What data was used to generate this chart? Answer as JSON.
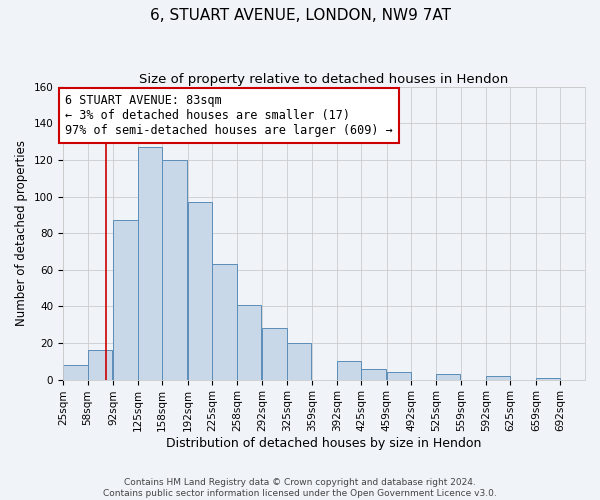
{
  "title": "6, STUART AVENUE, LONDON, NW9 7AT",
  "subtitle": "Size of property relative to detached houses in Hendon",
  "xlabel": "Distribution of detached houses by size in Hendon",
  "ylabel": "Number of detached properties",
  "bin_labels": [
    "25sqm",
    "58sqm",
    "92sqm",
    "125sqm",
    "158sqm",
    "192sqm",
    "225sqm",
    "258sqm",
    "292sqm",
    "325sqm",
    "359sqm",
    "392sqm",
    "425sqm",
    "459sqm",
    "492sqm",
    "525sqm",
    "559sqm",
    "592sqm",
    "625sqm",
    "659sqm",
    "692sqm"
  ],
  "bin_edges": [
    25,
    58,
    92,
    125,
    158,
    192,
    225,
    258,
    292,
    325,
    359,
    392,
    425,
    459,
    492,
    525,
    559,
    592,
    625,
    659,
    692
  ],
  "counts": [
    8,
    16,
    87,
    127,
    120,
    97,
    63,
    41,
    28,
    20,
    0,
    10,
    6,
    4,
    0,
    3,
    0,
    2,
    0,
    1,
    0
  ],
  "bar_facecolor": "#c8d8e8",
  "bar_edgecolor": "#5b8db8",
  "property_line_x": 83,
  "property_line_color": "#cc0000",
  "annotation_line1": "6 STUART AVENUE: 83sqm",
  "annotation_line2": "← 3% of detached houses are smaller (17)",
  "annotation_line3": "97% of semi-detached houses are larger (609) →",
  "annotation_box_facecolor": "#ffffff",
  "annotation_box_edgecolor": "#cc0000",
  "ylim": [
    0,
    160
  ],
  "yticks": [
    0,
    20,
    40,
    60,
    80,
    100,
    120,
    140,
    160
  ],
  "grid_color": "#cccccc",
  "background_color": "#f0f4f8",
  "footer_line1": "Contains HM Land Registry data © Crown copyright and database right 2024.",
  "footer_line2": "Contains public sector information licensed under the Open Government Licence v3.0.",
  "title_fontsize": 11,
  "subtitle_fontsize": 9.5,
  "xlabel_fontsize": 9,
  "ylabel_fontsize": 8.5,
  "tick_fontsize": 7.5,
  "footer_fontsize": 6.5,
  "annotation_fontsize": 8.5
}
